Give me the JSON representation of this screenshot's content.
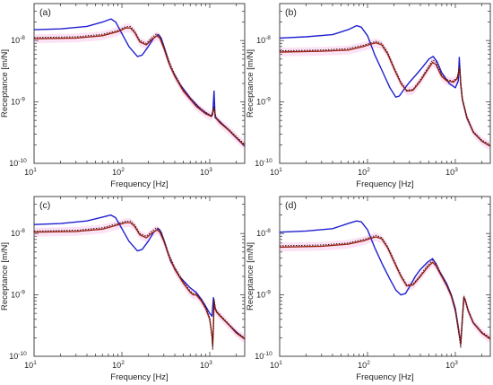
{
  "chart_data": {
    "type": "line",
    "x_scale": "log",
    "y_scale": "log",
    "xlim": [
      10,
      2500
    ],
    "ylim": [
      1e-10,
      4e-08
    ],
    "grid": false,
    "legend": "none",
    "colors": {
      "blue": "#1f1fd0",
      "red": "#9a2515",
      "dotted": "#3a0a0a",
      "band": "#f07ad0",
      "axis": "#444444"
    },
    "x_ticks": [
      {
        "value": 10,
        "label": "10",
        "sup": "1"
      },
      {
        "value": 100,
        "label": "10",
        "sup": "2"
      },
      {
        "value": 1000,
        "label": "10",
        "sup": "3"
      }
    ],
    "y_ticks": [
      {
        "value": 1e-10,
        "label": "10",
        "sup": "-10"
      },
      {
        "value": 1e-09,
        "label": "10",
        "sup": "-9"
      },
      {
        "value": 1e-08,
        "label": "10",
        "sup": "-8"
      }
    ],
    "panels": [
      {
        "panel_label": "(a)",
        "xlabel": "Frequency [Hz]",
        "ylabel": "Receptance [m/N]",
        "series": [
          {
            "style": "blue",
            "x": [
              10,
              20,
              40,
              60,
              75,
              85,
              100,
              120,
              150,
              170,
              200,
              230,
              260,
              280,
              310,
              360,
              450,
              600,
              800,
              1000,
              1080,
              1120,
              1150,
              1180,
              1300,
              1600,
              2000,
              2500
            ],
            "y": [
              1.5e-08,
              1.55e-08,
              1.7e-08,
              2e-08,
              2.25e-08,
              2e-08,
              1.3e-08,
              8e-09,
              5.5e-09,
              5.8e-09,
              8e-09,
              1.1e-08,
              1.25e-08,
              1.1e-08,
              7e-09,
              3.6e-09,
              2e-09,
              1.15e-09,
              7.5e-10,
              6e-10,
              6.2e-10,
              1.5e-09,
              5.5e-10,
              5.5e-10,
              4.8e-10,
              3.6e-10,
              2.6e-10,
              1.9e-10
            ]
          },
          {
            "style": "red",
            "x": [
              10,
              30,
              60,
              90,
              110,
              125,
              140,
              160,
              190,
              220,
              250,
              270,
              300,
              340,
              400,
              500,
              700,
              900,
              1050,
              1120,
              1150,
              1180,
              1300,
              1700,
              2200,
              2500
            ],
            "y": [
              1.07e-08,
              1.1e-08,
              1.2e-08,
              1.4e-08,
              1.6e-08,
              1.6e-08,
              1.35e-08,
              9.5e-09,
              8.5e-09,
              1.05e-08,
              1.2e-08,
              1.1e-08,
              7.5e-09,
              4.4e-09,
              2.6e-09,
              1.5e-09,
              8.5e-10,
              6.4e-10,
              5.8e-10,
              8e-10,
              6.2e-10,
              5.4e-10,
              4.6e-10,
              3.3e-10,
              2.3e-10,
              1.95e-10
            ]
          },
          {
            "style": "dotted",
            "x": [
              10,
              30,
              60,
              90,
              110,
              125,
              140,
              160,
              190,
              220,
              250,
              270,
              300,
              340,
              400,
              500,
              700,
              900,
              1050,
              1120,
              1150,
              1180,
              1300,
              1700,
              2200,
              2500
            ],
            "y": [
              1.12e-08,
              1.15e-08,
              1.26e-08,
              1.46e-08,
              1.68e-08,
              1.7e-08,
              1.42e-08,
              1e-08,
              9e-09,
              1.12e-08,
              1.3e-08,
              1.2e-08,
              8.2e-09,
              4.8e-09,
              2.8e-09,
              1.6e-09,
              9e-10,
              6.8e-10,
              6e-10,
              8.5e-10,
              6.5e-10,
              5.6e-10,
              4.8e-10,
              3.45e-10,
              2.4e-10,
              2.05e-10
            ]
          }
        ]
      },
      {
        "panel_label": "(b)",
        "xlabel": "Frequency [Hz]",
        "ylabel": "Receptance [m/N]",
        "series": [
          {
            "style": "blue",
            "x": [
              10,
              20,
              40,
              60,
              75,
              85,
              100,
              120,
              150,
              180,
              210,
              230,
              260,
              300,
              360,
              430,
              500,
              560,
              620,
              700,
              850,
              1000,
              1080,
              1110,
              1150,
              1200,
              1350,
              1600,
              2000,
              2500
            ],
            "y": [
              1.1e-08,
              1.15e-08,
              1.25e-08,
              1.5e-08,
              1.75e-08,
              1.65e-08,
              1.2e-08,
              6e-09,
              3e-09,
              1.7e-09,
              1.2e-09,
              1.25e-09,
              1.6e-09,
              2.1e-09,
              2.8e-09,
              3.8e-09,
              5e-09,
              5.5e-09,
              4.5e-09,
              3e-09,
              2e-09,
              1.7e-09,
              2.2e-09,
              5.3e-09,
              1.9e-09,
              1.1e-09,
              5.5e-10,
              3.2e-10,
              2.3e-10,
              1.9e-10
            ]
          },
          {
            "style": "red",
            "x": [
              10,
              30,
              60,
              90,
              110,
              125,
              145,
              170,
              200,
              240,
              280,
              330,
              400,
              480,
              550,
              600,
              650,
              700,
              800,
              950,
              1050,
              1120,
              1150,
              1200,
              1350,
              1600,
              2000,
              2500
            ],
            "y": [
              6.5e-09,
              6.7e-09,
              7e-09,
              8e-09,
              8.8e-09,
              9.2e-09,
              8.5e-09,
              6e-09,
              3.5e-09,
              2e-09,
              1.5e-09,
              1.55e-09,
              2.2e-09,
              3.3e-09,
              4.4e-09,
              4.1e-09,
              3.2e-09,
              2.6e-09,
              2.2e-09,
              2.1e-09,
              2.4e-09,
              3.6e-09,
              2e-09,
              1.1e-09,
              5.6e-10,
              3.2e-10,
              2.3e-10,
              1.9e-10
            ]
          },
          {
            "style": "dotted",
            "x": [
              10,
              30,
              60,
              90,
              110,
              125,
              145,
              170,
              200,
              240,
              280,
              330,
              400,
              480,
              550,
              600,
              650,
              700,
              800,
              950,
              1050,
              1120,
              1150,
              1200,
              1350,
              1600,
              2000,
              2500
            ],
            "y": [
              6.8e-09,
              7e-09,
              7.4e-09,
              8.4e-09,
              9.2e-09,
              9.7e-09,
              9e-09,
              6.4e-09,
              3.7e-09,
              2.1e-09,
              1.55e-09,
              1.6e-09,
              2.3e-09,
              3.5e-09,
              4.8e-09,
              4.5e-09,
              3.5e-09,
              2.8e-09,
              2.3e-09,
              2.2e-09,
              2.5e-09,
              3.9e-09,
              2.1e-09,
              1.15e-09,
              5.8e-10,
              3.3e-10,
              2.4e-10,
              2e-10
            ]
          }
        ]
      },
      {
        "panel_label": "(c)",
        "xlabel": "Frequency [Hz]",
        "ylabel": "Receptance [m/N]",
        "series": [
          {
            "style": "blue",
            "x": [
              10,
              20,
              40,
              60,
              75,
              85,
              100,
              120,
              150,
              170,
              200,
              230,
              260,
              280,
              310,
              360,
              450,
              600,
              700,
              800,
              900,
              1000,
              1060,
              1100,
              1150,
              1200,
              1300,
              1600,
              2000,
              2500
            ],
            "y": [
              1.4e-08,
              1.45e-08,
              1.6e-08,
              1.85e-08,
              2e-08,
              1.8e-08,
              1.2e-08,
              7.5e-09,
              5.2e-09,
              5.5e-09,
              7.5e-09,
              1.05e-08,
              1.2e-08,
              1.05e-08,
              6.8e-09,
              3.5e-09,
              2e-09,
              1.3e-09,
              1.1e-09,
              8.5e-10,
              6.5e-10,
              5e-10,
              4.5e-10,
              9e-10,
              6e-10,
              5.2e-10,
              4.6e-10,
              3.4e-10,
              2.5e-10,
              1.9e-10
            ]
          },
          {
            "style": "red",
            "x": [
              10,
              30,
              60,
              90,
              110,
              125,
              140,
              160,
              190,
              220,
              250,
              270,
              300,
              340,
              400,
              500,
              600,
              650,
              700,
              800,
              900,
              1000,
              1060,
              1080,
              1100,
              1120,
              1150,
              1200,
              1300,
              1600,
              2000,
              2500
            ],
            "y": [
              1.05e-08,
              1.08e-08,
              1.18e-08,
              1.38e-08,
              1.5e-08,
              1.5e-08,
              1.3e-08,
              9.5e-09,
              8.5e-09,
              1.02e-08,
              1.15e-08,
              1.05e-08,
              7.5e-09,
              4.4e-09,
              2.6e-09,
              1.55e-09,
              1.1e-09,
              1e-09,
              1e-09,
              8e-10,
              6e-10,
              4e-10,
              2.2e-10,
              1.5e-10,
              3e-10,
              8e-10,
              6e-10,
              5.2e-10,
              4.6e-10,
              3.4e-10,
              2.4e-10,
              1.9e-10
            ]
          },
          {
            "style": "dotted",
            "x": [
              10,
              30,
              60,
              90,
              110,
              125,
              140,
              160,
              190,
              220,
              250,
              270,
              300,
              340,
              400,
              500,
              600,
              650,
              700,
              800,
              900,
              1000,
              1060,
              1080,
              1100,
              1120,
              1150,
              1200,
              1300,
              1600,
              2000,
              2500
            ],
            "y": [
              1.1e-08,
              1.13e-08,
              1.24e-08,
              1.45e-08,
              1.58e-08,
              1.6e-08,
              1.38e-08,
              1e-08,
              9e-09,
              1.1e-08,
              1.25e-08,
              1.15e-08,
              8e-09,
              4.7e-09,
              2.8e-09,
              1.65e-09,
              1.15e-09,
              1.05e-09,
              1.05e-09,
              8.5e-10,
              6.3e-10,
              4.2e-10,
              2e-10,
              1.3e-10,
              2.8e-10,
              8.5e-10,
              6.3e-10,
              5.4e-10,
              4.8e-10,
              3.5e-10,
              2.5e-10,
              2e-10
            ]
          }
        ]
      },
      {
        "panel_label": "(d)",
        "xlabel": "Frequency [Hz]",
        "ylabel": "Receptance [m/N]",
        "series": [
          {
            "style": "blue",
            "x": [
              10,
              20,
              40,
              60,
              75,
              85,
              100,
              120,
              150,
              180,
              210,
              240,
              270,
              300,
              350,
              400,
              480,
              550,
              600,
              650,
              700,
              800,
              900,
              1000,
              1080,
              1150,
              1200,
              1250,
              1300,
              1400,
              1600,
              2000,
              2500
            ],
            "y": [
              1.05e-08,
              1.1e-08,
              1.2e-08,
              1.45e-08,
              1.6e-08,
              1.55e-08,
              1.15e-08,
              6e-09,
              3e-09,
              1.8e-09,
              1.2e-09,
              1e-09,
              1.05e-09,
              1.35e-09,
              2e-09,
              2.6e-09,
              3.4e-09,
              3.9e-09,
              3.2e-09,
              2.5e-09,
              2.1e-09,
              1.5e-09,
              1e-09,
              6e-10,
              3e-10,
              1.6e-10,
              4e-10,
              9e-10,
              8e-10,
              5.5e-10,
              3.5e-10,
              2.4e-10,
              1.9e-10
            ]
          },
          {
            "style": "red",
            "x": [
              10,
              30,
              60,
              90,
              110,
              125,
              145,
              170,
              200,
              240,
              280,
              330,
              400,
              480,
              550,
              600,
              650,
              700,
              800,
              900,
              1000,
              1080,
              1150,
              1200,
              1250,
              1300,
              1400,
              1600,
              2000,
              2500
            ],
            "y": [
              6e-09,
              6.2e-09,
              6.7e-09,
              7.6e-09,
              8.4e-09,
              8.8e-09,
              8.2e-09,
              5.8e-09,
              3.5e-09,
              2e-09,
              1.4e-09,
              1.45e-09,
              2e-09,
              2.8e-09,
              3.4e-09,
              3e-09,
              2.4e-09,
              2e-09,
              1.4e-09,
              9.5e-10,
              5.5e-10,
              2.8e-10,
              1.6e-10,
              4e-10,
              9e-10,
              8e-10,
              5.5e-10,
              3.5e-10,
              2.4e-10,
              1.9e-10
            ]
          },
          {
            "style": "dotted",
            "x": [
              10,
              30,
              60,
              90,
              110,
              125,
              145,
              170,
              200,
              240,
              280,
              330,
              400,
              480,
              550,
              600,
              650,
              700,
              800,
              900,
              1000,
              1080,
              1150,
              1200,
              1250,
              1300,
              1400,
              1600,
              2000,
              2500
            ],
            "y": [
              6.3e-09,
              6.5e-09,
              7e-09,
              8e-09,
              8.8e-09,
              9.3e-09,
              8.6e-09,
              6.1e-09,
              3.7e-09,
              2.1e-09,
              1.45e-09,
              1.5e-09,
              2.1e-09,
              3e-09,
              3.7e-09,
              3.3e-09,
              2.6e-09,
              2.1e-09,
              1.45e-09,
              1e-09,
              5.8e-10,
              2.6e-10,
              1.4e-10,
              4.2e-10,
              9.5e-10,
              8.4e-10,
              5.7e-10,
              3.6e-10,
              2.5e-10,
              2e-10
            ]
          }
        ]
      }
    ]
  }
}
